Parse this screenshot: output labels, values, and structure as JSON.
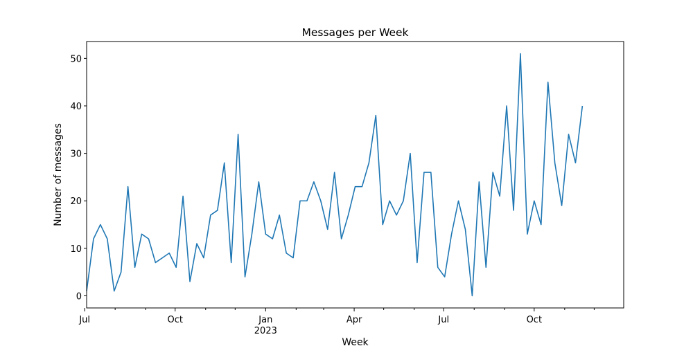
{
  "chart_data": {
    "type": "line",
    "title": "Messages per Week",
    "xlabel": "Week",
    "ylabel": "Number of messages",
    "x_start": "2022-07-03",
    "x_interval_days": 7,
    "xlim": [
      "2022-07-03",
      "2023-12-31"
    ],
    "ylim": [
      -2.55,
      53.55
    ],
    "y_ticks": [
      0,
      10,
      20,
      30,
      40,
      50
    ],
    "x_major_ticks": [
      {
        "date": "2022-07-01",
        "label": "Jul",
        "sublabel": ""
      },
      {
        "date": "2022-10-01",
        "label": "Oct",
        "sublabel": ""
      },
      {
        "date": "2023-01-01",
        "label": "Jan",
        "sublabel": "2023"
      },
      {
        "date": "2023-04-01",
        "label": "Apr",
        "sublabel": ""
      },
      {
        "date": "2023-07-01",
        "label": "Jul",
        "sublabel": ""
      },
      {
        "date": "2023-10-01",
        "label": "Oct",
        "sublabel": ""
      }
    ],
    "x_minor_ticks": [
      "2022-08-01",
      "2022-09-01",
      "2022-11-01",
      "2022-12-01",
      "2023-02-01",
      "2023-03-01",
      "2023-05-01",
      "2023-06-01",
      "2023-08-01",
      "2023-09-01",
      "2023-11-01",
      "2023-12-01"
    ],
    "grid": false,
    "legend": "none",
    "line_color": "#1f77b4",
    "series": [
      {
        "values": [
          1,
          12,
          15,
          12,
          1,
          5,
          23,
          6,
          13,
          12,
          7,
          8,
          9,
          6,
          21,
          3,
          11,
          8,
          17,
          18,
          28,
          7,
          34,
          4,
          13,
          24,
          13,
          12,
          17,
          9,
          8,
          20,
          20,
          24,
          20,
          14,
          26,
          12,
          17,
          23,
          23,
          28,
          38,
          15,
          20,
          17,
          20,
          30,
          7,
          26,
          26,
          6,
          4,
          13,
          20,
          14,
          0,
          24,
          6,
          26,
          21,
          40,
          18,
          51,
          13,
          20,
          15,
          45,
          28,
          19,
          34,
          28,
          40
        ]
      }
    ]
  }
}
